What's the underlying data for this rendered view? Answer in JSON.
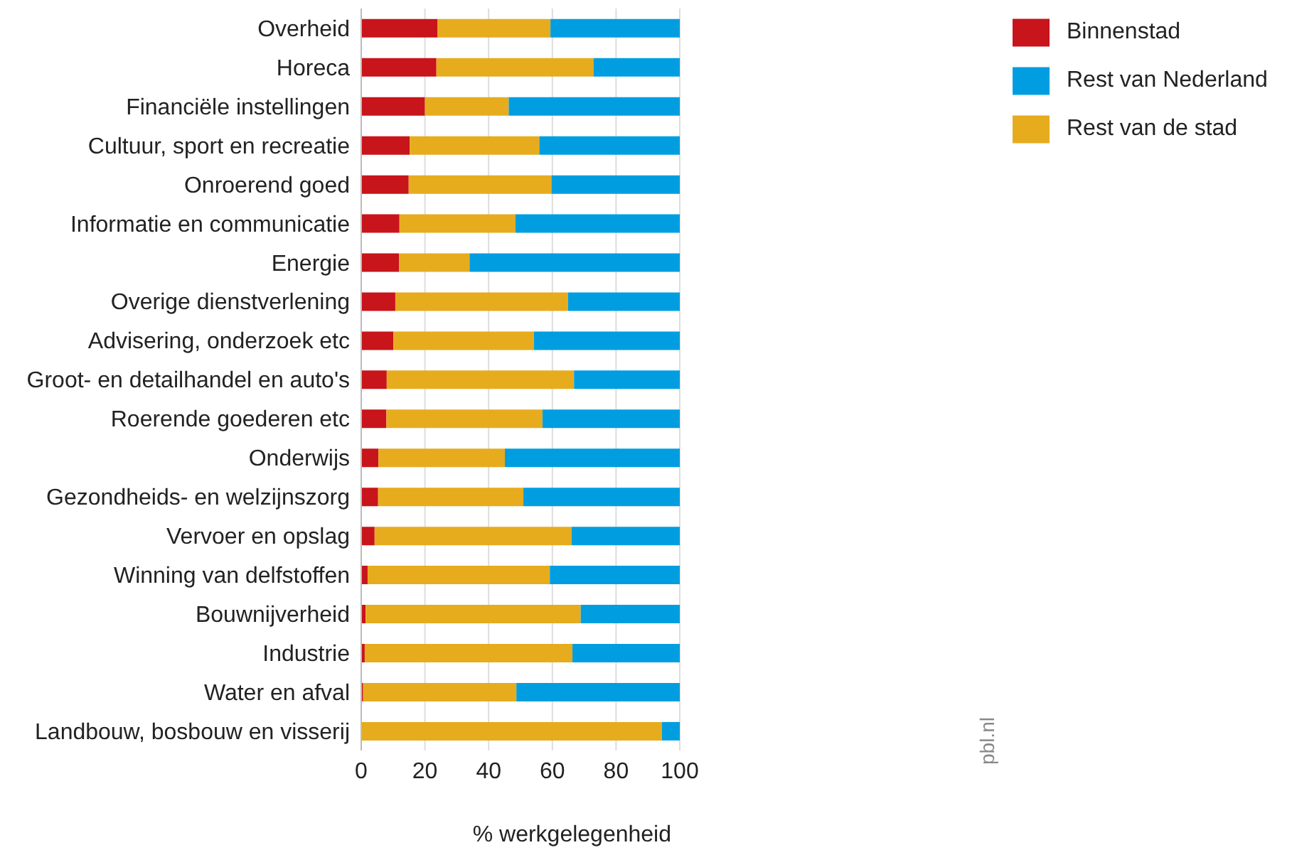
{
  "chart_data": {
    "type": "bar",
    "orientation": "horizontal",
    "stacked": true,
    "categories": [
      "Overheid",
      "Horeca",
      "Financiële instellingen",
      "Cultuur, sport en recreatie",
      "Onroerend goed",
      "Informatie en communicatie",
      "Energie",
      "Overige dienstverlening",
      "Advisering, onderzoek etc",
      "Groot- en detailhandel en auto's",
      "Roerende goederen etc",
      "Onderwijs",
      "Gezondheids- en welzijnszorg",
      "Vervoer en opslag",
      "Winning van delfstoffen",
      "Bouwnijverheid",
      "Industrie",
      "Water en afval",
      "Landbouw, bosbouw en visserij"
    ],
    "series": [
      {
        "name": "Binnenstad",
        "color": "#c8141b",
        "values": [
          24.0,
          23.6,
          20.0,
          15.2,
          14.9,
          12.0,
          11.9,
          10.7,
          10.1,
          8.0,
          7.9,
          5.4,
          5.3,
          4.2,
          2.0,
          1.4,
          1.1,
          0.6,
          0
        ]
      },
      {
        "name": "Rest van de stad",
        "color": "#e6ac1e",
        "values": [
          35.4,
          49.3,
          26.3,
          40.7,
          44.8,
          36.4,
          22.1,
          54.2,
          44.1,
          58.8,
          49.0,
          39.7,
          45.6,
          61.8,
          57.2,
          67.5,
          65.2,
          48.1,
          94.4
        ]
      },
      {
        "name": "Rest van Nederland",
        "color": "#009ee0",
        "values": [
          40.6,
          27.1,
          53.7,
          44.1,
          40.3,
          51.6,
          66.0,
          35.1,
          45.8,
          33.2,
          43.1,
          54.9,
          49.1,
          34.0,
          40.8,
          31.1,
          33.7,
          51.3,
          5.6
        ]
      }
    ],
    "xlabel": "% werkgelegenheid",
    "xlim": [
      0,
      100
    ],
    "xticks": [
      0,
      20,
      40,
      60,
      80,
      100
    ],
    "grid": "x",
    "legend": "top right",
    "annotations": [
      "pbl.nl"
    ]
  }
}
